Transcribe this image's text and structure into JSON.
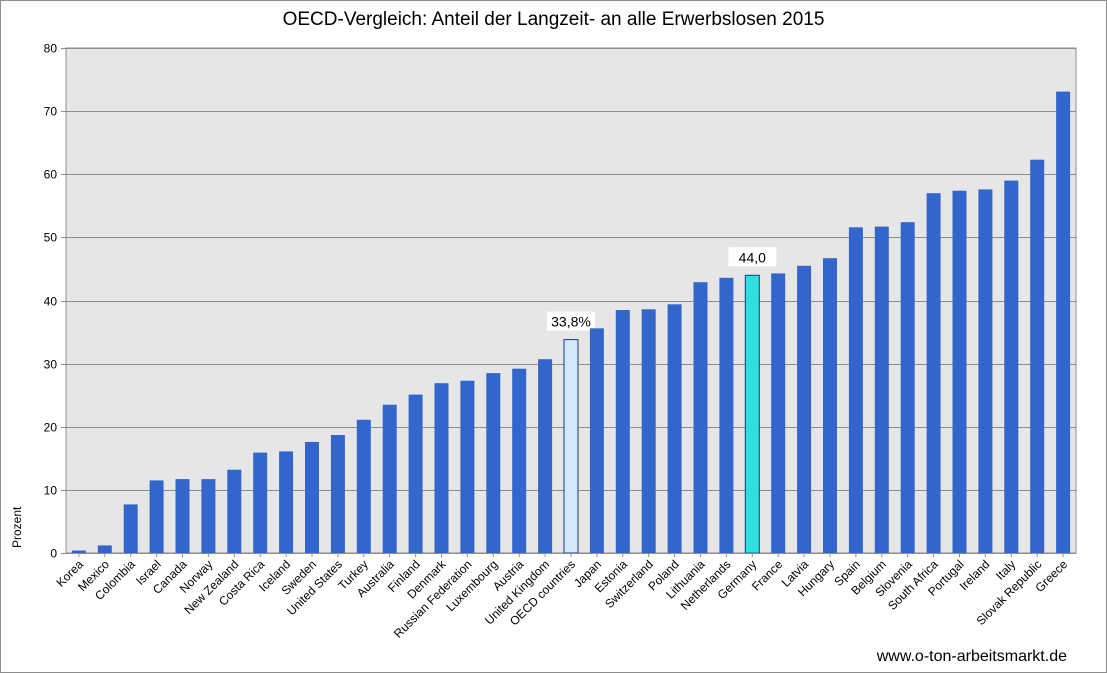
{
  "chart_data": {
    "type": "bar",
    "title": "OECD-Vergleich: Anteil der Langzeit- an alle Erwerbslosen 2015",
    "xlabel": "",
    "ylabel": "Prozent",
    "ylim": [
      0,
      80
    ],
    "yticks": [
      "0",
      "10",
      "20",
      "30",
      "40",
      "50",
      "60",
      "70",
      "80"
    ],
    "grid": true,
    "categories": [
      "Korea",
      "Mexico",
      "Colombia",
      "Israel",
      "Canada",
      "Norway",
      "New Zealand",
      "Costa Rica",
      "Iceland",
      "Sweden",
      "United States",
      "Turkey",
      "Australia",
      "Finland",
      "Denmark",
      "Russian Federation",
      "Luxembourg",
      "Austria",
      "United Kingdom",
      "OECD countries",
      "Japan",
      "Estonia",
      "Switzerland",
      "Poland",
      "Lithuania",
      "Netherlands",
      "Germany",
      "France",
      "Latvia",
      "Hungary",
      "Spain",
      "Belgium",
      "Slovenia",
      "South Africa",
      "Portugal",
      "Ireland",
      "Italy",
      "Slovak Republic",
      "Greece"
    ],
    "values": [
      0.4,
      1.2,
      7.7,
      11.5,
      11.7,
      11.7,
      13.2,
      15.9,
      16.1,
      17.6,
      18.7,
      21.1,
      23.5,
      25.1,
      26.9,
      27.3,
      28.5,
      29.2,
      30.7,
      33.8,
      35.6,
      38.5,
      38.6,
      39.4,
      42.9,
      43.6,
      44.0,
      44.3,
      45.5,
      46.7,
      51.6,
      51.7,
      52.4,
      57.0,
      57.4,
      57.6,
      59.0,
      62.3,
      73.1
    ],
    "highlights": [
      {
        "category": "OECD countries",
        "color": "#d4e8fa",
        "label": "33,8%"
      },
      {
        "category": "Germany",
        "color": "#2de0dc",
        "label": "44,0"
      }
    ],
    "bar_color": "#3366cc",
    "plot_background": "#e6e6e6"
  },
  "source": "www.o-ton-arbeitsmarkt.de"
}
